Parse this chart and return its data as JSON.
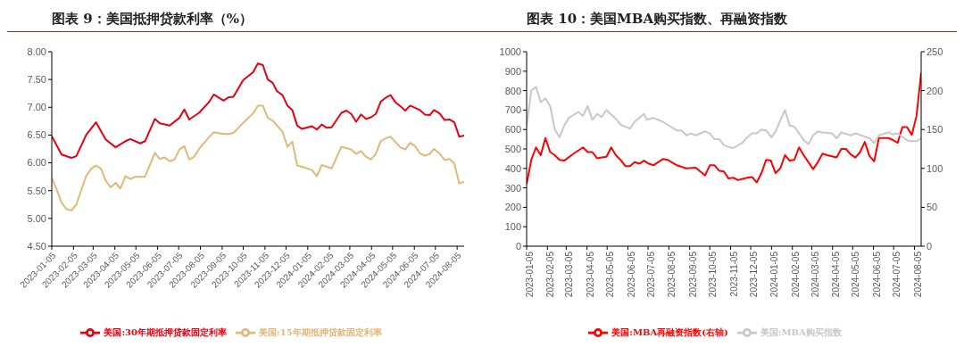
{
  "chart_data": [
    {
      "type": "line",
      "title": "图表 9：美国抵押贷款利率（%）",
      "xlim": [
        "2023-01-05",
        "2024-08-15"
      ],
      "xticks": [
        "2023-01-05",
        "2023-02-05",
        "2023-03-05",
        "2023-04-05",
        "2023-05-05",
        "2023-06-05",
        "2023-07-05",
        "2023-08-05",
        "2023-09-05",
        "2023-10-05",
        "2023-11-05",
        "2023-12-05",
        "2024-01-05",
        "2024-02-05",
        "2024-03-05",
        "2024-04-05",
        "2024-05-05",
        "2024-06-05",
        "2024-07-05",
        "2024-08-05"
      ],
      "ylim": [
        4.5,
        8
      ],
      "yticks": [
        {
          "value": 4.5,
          "label": "4.50"
        },
        {
          "value": 5,
          "label": "5.00"
        },
        {
          "value": 5.5,
          "label": "5.50"
        },
        {
          "value": 6,
          "label": "6.00"
        },
        {
          "value": 6.5,
          "label": "6.50"
        },
        {
          "value": 7,
          "label": "7.00"
        },
        {
          "value": 7.5,
          "label": "7.50"
        },
        {
          "value": 8,
          "label": "8.00"
        }
      ],
      "legend": "bottom",
      "marker": "none",
      "line_style": "solid",
      "series": [
        {
          "name": "美国:30年期抵押贷款固定利率",
          "color": "#e60012",
          "x": [
            "2023-01-05",
            "2023-01-19",
            "2023-02-02",
            "2023-02-09",
            "2023-02-23",
            "2023-03-09",
            "2023-03-23",
            "2023-04-06",
            "2023-04-20",
            "2023-04-27",
            "2023-05-11",
            "2023-05-18",
            "2023-06-01",
            "2023-06-08",
            "2023-06-22",
            "2023-07-06",
            "2023-07-13",
            "2023-07-20",
            "2023-08-03",
            "2023-08-17",
            "2023-08-24",
            "2023-09-07",
            "2023-09-14",
            "2023-09-21",
            "2023-10-05",
            "2023-10-19",
            "2023-10-26",
            "2023-11-02",
            "2023-11-09",
            "2023-11-16",
            "2023-11-22",
            "2023-11-30",
            "2023-12-07",
            "2023-12-14",
            "2023-12-21",
            "2023-12-28",
            "2024-01-11",
            "2024-01-18",
            "2024-01-25",
            "2024-02-01",
            "2024-02-08",
            "2024-02-22",
            "2024-02-29",
            "2024-03-07",
            "2024-03-14",
            "2024-03-21",
            "2024-03-28",
            "2024-04-04",
            "2024-04-11",
            "2024-04-18",
            "2024-04-25",
            "2024-05-02",
            "2024-05-09",
            "2024-05-16",
            "2024-05-23",
            "2024-05-30",
            "2024-06-13",
            "2024-06-20",
            "2024-06-27",
            "2024-07-03",
            "2024-07-11",
            "2024-07-18",
            "2024-07-25",
            "2024-08-01",
            "2024-08-08",
            "2024-08-15"
          ],
          "values": [
            6.48,
            6.15,
            6.09,
            6.12,
            6.5,
            6.73,
            6.42,
            6.28,
            6.39,
            6.43,
            6.35,
            6.39,
            6.79,
            6.71,
            6.67,
            6.81,
            6.96,
            6.78,
            6.9,
            7.09,
            7.23,
            7.12,
            7.18,
            7.19,
            7.49,
            7.63,
            7.79,
            7.76,
            7.5,
            7.44,
            7.29,
            7.22,
            7.03,
            6.95,
            6.67,
            6.61,
            6.66,
            6.6,
            6.69,
            6.63,
            6.64,
            6.9,
            6.94,
            6.88,
            6.74,
            6.87,
            6.79,
            6.82,
            6.88,
            7.1,
            7.17,
            7.22,
            7.09,
            7.02,
            6.94,
            7.03,
            6.95,
            6.87,
            6.86,
            6.95,
            6.89,
            6.77,
            6.78,
            6.73,
            6.47,
            6.49
          ]
        },
        {
          "name": "美国:15年期抵押贷款固定利率",
          "color": "#e0b878",
          "x": [
            "2023-01-05",
            "2023-01-12",
            "2023-01-19",
            "2023-01-26",
            "2023-02-02",
            "2023-02-09",
            "2023-02-23",
            "2023-03-02",
            "2023-03-09",
            "2023-03-16",
            "2023-03-23",
            "2023-03-30",
            "2023-04-06",
            "2023-04-13",
            "2023-04-20",
            "2023-04-27",
            "2023-05-04",
            "2023-05-11",
            "2023-05-18",
            "2023-06-01",
            "2023-06-08",
            "2023-06-15",
            "2023-06-22",
            "2023-06-29",
            "2023-07-06",
            "2023-07-13",
            "2023-07-20",
            "2023-07-27",
            "2023-08-03",
            "2023-08-17",
            "2023-08-24",
            "2023-09-07",
            "2023-09-14",
            "2023-09-21",
            "2023-10-05",
            "2023-10-19",
            "2023-10-26",
            "2023-11-02",
            "2023-11-09",
            "2023-11-16",
            "2023-11-30",
            "2023-12-07",
            "2023-12-14",
            "2023-12-21",
            "2023-12-28",
            "2024-01-11",
            "2024-01-18",
            "2024-01-25",
            "2024-02-08",
            "2024-02-22",
            "2024-03-07",
            "2024-03-14",
            "2024-03-21",
            "2024-03-28",
            "2024-04-04",
            "2024-04-11",
            "2024-04-18",
            "2024-04-25",
            "2024-05-02",
            "2024-05-16",
            "2024-05-23",
            "2024-05-30",
            "2024-06-06",
            "2024-06-13",
            "2024-06-20",
            "2024-06-27",
            "2024-07-03",
            "2024-07-11",
            "2024-07-18",
            "2024-07-25",
            "2024-08-01",
            "2024-08-08",
            "2024-08-15"
          ],
          "values": [
            5.73,
            5.52,
            5.28,
            5.17,
            5.14,
            5.25,
            5.76,
            5.89,
            5.95,
            5.9,
            5.68,
            5.56,
            5.64,
            5.54,
            5.76,
            5.71,
            5.75,
            5.75,
            5.75,
            6.18,
            6.07,
            6.1,
            6.03,
            6.06,
            6.24,
            6.3,
            6.06,
            6.11,
            6.25,
            6.46,
            6.55,
            6.52,
            6.52,
            6.54,
            6.72,
            6.89,
            7.03,
            7.03,
            6.81,
            6.76,
            6.56,
            6.29,
            6.38,
            5.95,
            5.93,
            5.87,
            5.76,
            5.96,
            5.9,
            6.29,
            6.24,
            6.16,
            6.21,
            6.11,
            6.06,
            6.16,
            6.39,
            6.44,
            6.47,
            6.28,
            6.24,
            6.36,
            6.3,
            6.17,
            6.13,
            6.16,
            6.25,
            6.17,
            6.05,
            6.07,
            5.99,
            5.63,
            5.66
          ]
        }
      ]
    },
    {
      "type": "line",
      "title": "图表 10：美国MBA购买指数、再融资指数",
      "xlim": [
        "2023-01-05",
        "2024-08-15"
      ],
      "xticks": [
        "2023-01-05",
        "2023-02-05",
        "2023-03-05",
        "2023-04-05",
        "2023-05-05",
        "2023-06-05",
        "2023-07-05",
        "2023-08-05",
        "2023-09-05",
        "2023-10-05",
        "2023-11-05",
        "2023-12-05",
        "2024-01-05",
        "2024-02-05",
        "2024-03-05",
        "2024-04-05",
        "2024-05-05",
        "2024-06-05",
        "2024-07-05",
        "2024-08-05"
      ],
      "ylim": [
        0,
        1000
      ],
      "yticks": [
        0,
        100,
        200,
        300,
        400,
        500,
        600,
        700,
        800,
        900,
        1000
      ],
      "y2lim": [
        0,
        250
      ],
      "y2ticks": [
        0,
        50,
        100,
        150,
        200,
        250
      ],
      "legend": "bottom",
      "marker": "none",
      "line_style": "solid",
      "series": [
        {
          "name": "美国:MBA再融资指数(右轴)",
          "color": "#ff0000",
          "axis": "y2",
          "x": [
            "2023-01-05",
            "2023-01-12",
            "2023-01-19",
            "2023-01-26",
            "2023-02-02",
            "2023-02-09",
            "2023-02-16",
            "2023-02-23",
            "2023-03-02",
            "2023-03-16",
            "2023-03-30",
            "2023-04-06",
            "2023-04-13",
            "2023-04-20",
            "2023-04-27",
            "2023-05-04",
            "2023-05-11",
            "2023-05-18",
            "2023-05-25",
            "2023-06-01",
            "2023-06-08",
            "2023-06-15",
            "2023-06-22",
            "2023-06-29",
            "2023-07-06",
            "2023-07-13",
            "2023-07-27",
            "2023-08-03",
            "2023-08-17",
            "2023-08-31",
            "2023-09-14",
            "2023-09-28",
            "2023-10-05",
            "2023-10-12",
            "2023-10-19",
            "2023-10-26",
            "2023-11-02",
            "2023-11-09",
            "2023-11-16",
            "2023-11-30",
            "2023-12-07",
            "2023-12-14",
            "2023-12-21",
            "2023-12-28",
            "2024-01-04",
            "2024-01-11",
            "2024-01-18",
            "2024-01-25",
            "2024-02-01",
            "2024-02-08",
            "2024-02-15",
            "2024-02-22",
            "2024-03-07",
            "2024-03-14",
            "2024-03-21",
            "2024-03-28",
            "2024-04-11",
            "2024-04-18",
            "2024-04-25",
            "2024-05-02",
            "2024-05-09",
            "2024-05-16",
            "2024-05-23",
            "2024-05-30",
            "2024-06-06",
            "2024-06-13",
            "2024-06-27",
            "2024-07-03",
            "2024-07-11",
            "2024-07-18",
            "2024-07-25",
            "2024-08-01",
            "2024-08-08",
            "2024-08-15"
          ],
          "values": [
            80,
            111,
            127,
            117,
            139,
            121,
            117,
            111,
            110,
            119,
            127,
            121,
            121,
            113,
            114,
            115,
            127,
            117,
            111,
            103,
            103,
            108,
            106,
            110,
            106,
            104,
            112,
            111,
            104,
            100,
            101,
            91,
            104,
            104,
            97,
            96,
            87,
            88,
            85,
            88,
            89,
            82,
            94,
            111,
            110,
            94,
            100,
            117,
            110,
            111,
            127,
            117,
            99,
            108,
            119,
            117,
            114,
            125,
            125,
            118,
            114,
            121,
            134,
            116,
            109,
            139,
            139,
            137,
            133,
            153,
            153,
            143,
            167,
            223
          ]
        },
        {
          "name": "美国:MBA购买指数",
          "color": "#c8c8c8",
          "x": [
            "2023-01-05",
            "2023-01-12",
            "2023-01-19",
            "2023-01-26",
            "2023-02-02",
            "2023-02-09",
            "2023-02-16",
            "2023-02-23",
            "2023-03-02",
            "2023-03-09",
            "2023-03-23",
            "2023-03-30",
            "2023-04-06",
            "2023-04-13",
            "2023-04-20",
            "2023-04-27",
            "2023-05-04",
            "2023-05-18",
            "2023-05-25",
            "2023-06-08",
            "2023-06-15",
            "2023-06-29",
            "2023-07-03",
            "2023-07-13",
            "2023-07-27",
            "2023-08-10",
            "2023-08-17",
            "2023-08-24",
            "2023-08-31",
            "2023-09-07",
            "2023-09-14",
            "2023-09-28",
            "2023-10-05",
            "2023-10-12",
            "2023-10-19",
            "2023-10-26",
            "2023-11-02",
            "2023-11-09",
            "2023-11-22",
            "2023-11-30",
            "2023-12-07",
            "2023-12-14",
            "2023-12-21",
            "2023-12-28",
            "2024-01-05",
            "2024-01-11",
            "2024-01-25",
            "2024-02-01",
            "2024-02-08",
            "2024-02-22",
            "2024-02-29",
            "2024-03-07",
            "2024-03-14",
            "2024-03-21",
            "2024-04-04",
            "2024-04-11",
            "2024-04-18",
            "2024-05-02",
            "2024-05-09",
            "2024-05-30",
            "2024-06-06",
            "2024-06-13",
            "2024-06-27",
            "2024-07-03",
            "2024-07-11",
            "2024-07-25",
            "2024-08-01",
            "2024-08-08",
            "2024-08-15"
          ],
          "values": [
            620,
            800,
            820,
            740,
            760,
            720,
            600,
            560,
            620,
            660,
            690,
            670,
            720,
            650,
            680,
            665,
            700,
            655,
            625,
            605,
            640,
            680,
            650,
            660,
            640,
            610,
            595,
            595,
            570,
            580,
            570,
            590,
            580,
            550,
            550,
            520,
            510,
            505,
            530,
            560,
            580,
            580,
            600,
            595,
            560,
            590,
            700,
            620,
            615,
            545,
            525,
            570,
            590,
            585,
            580,
            555,
            585,
            570,
            580,
            555,
            530,
            570,
            585,
            575,
            580,
            545,
            540,
            540,
            555
          ]
        }
      ]
    }
  ]
}
